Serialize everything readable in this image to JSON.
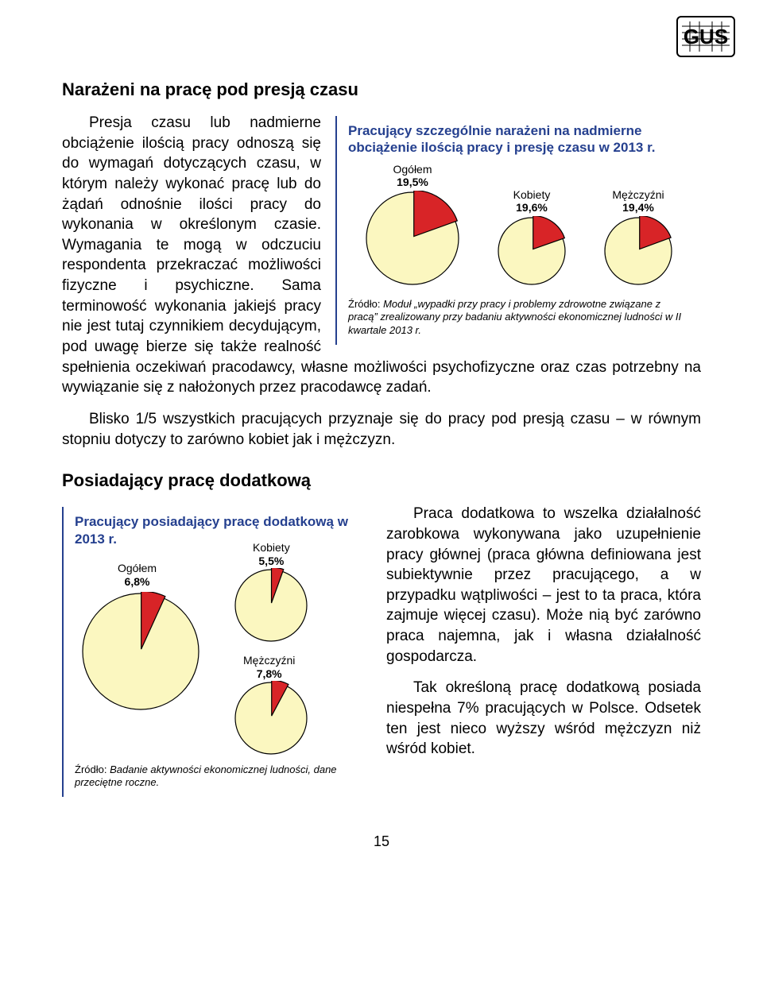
{
  "page_number": "15",
  "logo_text": "GUS",
  "section1": {
    "title": "Narażeni na pracę pod presją czasu",
    "para_full": "Presja czasu lub nadmierne obciążenie ilością pracy odnoszą się do wymagań dotyczących czasu, w którym należy wykonać pracę lub do żądań odnośnie ilości pracy do wykonania w określonym czasie. Wymagania te mogą w odczuciu respondenta przekraczać możliwości fizyczne i psychiczne. Sama terminowość wykonania jakiejś pracy nie jest tutaj czynnikiem decydującym, pod uwagę bierze się także realność spełnienia oczekiwań pracodawcy, własne możliwości psychofizyczne oraz czas potrzebny na wywiązanie się z nałożonych przez pracodawcę zadań.",
    "para2": "Blisko 1/5 wszystkich pracujących przyznaje się do pracy pod presją czasu – w równym stopniu dotyczy to zarówno kobiet jak i mężczyzn."
  },
  "chart1": {
    "title": "Pracujący szczególnie narażeni na nadmierne obciążenie ilością pracy i presję czasu w 2013 r.",
    "type": "pie",
    "slice_color": "#d82427",
    "rest_color": "#fbf7c0",
    "outline_color": "#000000",
    "title_color": "#25408f",
    "border_color": "#25408f",
    "items": [
      {
        "label": "Ogółem",
        "value": 19.5,
        "pct_label": "19,5%",
        "diameter": 120
      },
      {
        "label": "Kobiety",
        "value": 19.6,
        "pct_label": "19,6%",
        "diameter": 88
      },
      {
        "label": "Mężczyźni",
        "value": 19.4,
        "pct_label": "19,4%",
        "diameter": 88
      }
    ],
    "source_label": "Źródło:",
    "source_text": "Moduł „wypadki przy pracy i problemy zdrowotne związane z pracą” zrealizowany przy badaniu aktywności ekonomicznej ludności w II kwartale 2013 r."
  },
  "section2": {
    "title": "Posiadający pracę dodatkową",
    "para_full": "Praca dodatkowa to wszelka działalność zarobkowa wykonywana jako uzupełnienie pracy głównej (praca główna definiowana jest subiektywnie przez pracującego, a w przypadku wątpliwości – jest to ta praca, która zajmuje więcej czasu). Może nią być zarówno praca najemna, jak i własna działalność gospodarcza.",
    "para2": "Tak określoną pracę dodatkową posiada niespełna 7% pracujących w Polsce. Odsetek ten jest nieco wyższy wśród mężczyzn niż wśród kobiet."
  },
  "chart2": {
    "title": "Pracujący posiadający pracę dodatkową w 2013 r.",
    "type": "pie",
    "slice_color": "#d82427",
    "rest_color": "#fbf7c0",
    "outline_color": "#000000",
    "title_color": "#25408f",
    "border_color": "#25408f",
    "items": [
      {
        "label": "Ogółem",
        "value": 6.8,
        "pct_label": "6,8%",
        "diameter": 150
      },
      {
        "label": "Kobiety",
        "value": 5.5,
        "pct_label": "5,5%",
        "diameter": 94
      },
      {
        "label": "Mężczyźni",
        "value": 7.8,
        "pct_label": "7,8%",
        "diameter": 94
      }
    ],
    "source_label": "Źródło:",
    "source_text": "Badanie aktywności ekonomicznej ludności, dane przeciętne roczne."
  }
}
